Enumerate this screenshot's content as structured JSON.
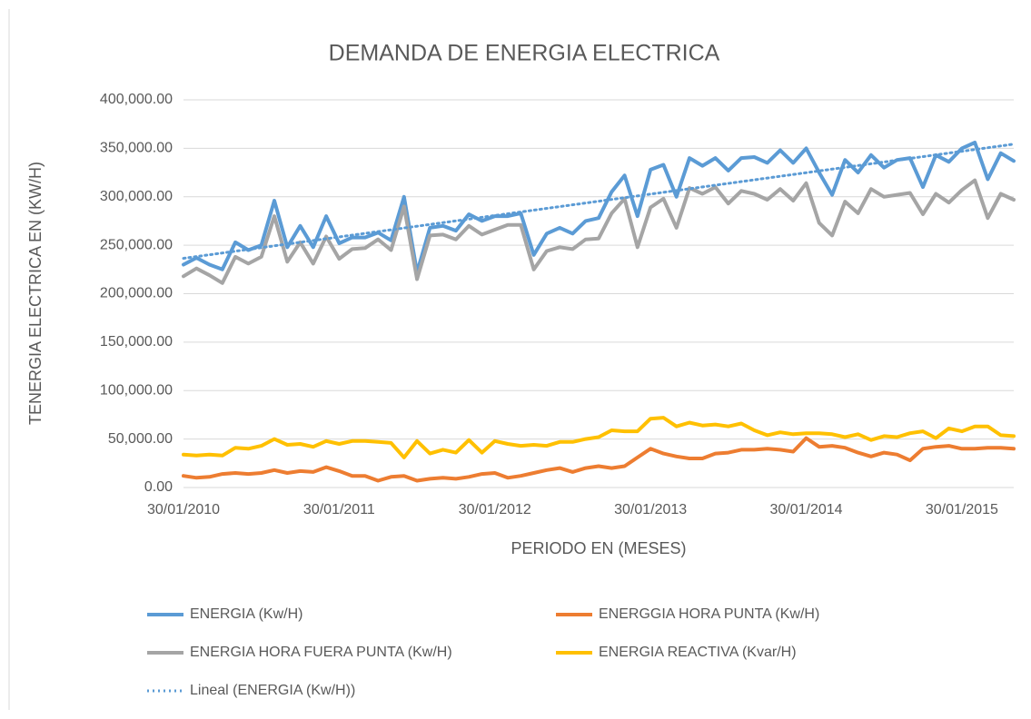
{
  "chart_data": {
    "type": "line",
    "title": "DEMANDA DE ENERGIA ELECTRICA",
    "x_label": "PERIODO EN  (MESES)",
    "y_label": "TENERGIA ELECTRICA EN (KW/H)",
    "categories": [
      "30/01/2010",
      null,
      null,
      null,
      null,
      null,
      null,
      null,
      null,
      null,
      null,
      null,
      "30/01/2011",
      null,
      null,
      null,
      null,
      null,
      null,
      null,
      null,
      null,
      null,
      null,
      "30/01/2012",
      null,
      null,
      null,
      null,
      null,
      null,
      null,
      null,
      null,
      null,
      null,
      "30/01/2013",
      null,
      null,
      null,
      null,
      null,
      null,
      null,
      null,
      null,
      null,
      null,
      "30/01/2014",
      null,
      null,
      null,
      null,
      null,
      null,
      null,
      null,
      null,
      null,
      null,
      "30/01/2015",
      null,
      null,
      null,
      null
    ],
    "ylim": [
      0,
      400000
    ],
    "yticks": [
      {
        "value": 0,
        "label": "0.00"
      },
      {
        "value": 50000,
        "label": "50,000.00"
      },
      {
        "value": 100000,
        "label": "100,000.00"
      },
      {
        "value": 150000,
        "label": "150,000.00"
      },
      {
        "value": 200000,
        "label": "200,000.00"
      },
      {
        "value": 250000,
        "label": "250,000.00"
      },
      {
        "value": 300000,
        "label": "300,000.00"
      },
      {
        "value": 350000,
        "label": "350,000.00"
      },
      {
        "value": 400000,
        "label": "400,000.00"
      }
    ],
    "grid": true,
    "series": [
      {
        "name": "ENERGIA (Kw/H)",
        "color": "#5b9bd5",
        "values": [
          230000,
          237000,
          230000,
          225000,
          253000,
          245000,
          250000,
          296000,
          248000,
          270000,
          248000,
          280000,
          252000,
          258000,
          258000,
          263000,
          255000,
          300000,
          222000,
          268000,
          270000,
          265000,
          282000,
          275000,
          280000,
          280000,
          283000,
          240000,
          262000,
          268000,
          262000,
          275000,
          278000,
          305000,
          322000,
          280000,
          328000,
          333000,
          300000,
          340000,
          332000,
          340000,
          327000,
          340000,
          341000,
          335000,
          348000,
          335000,
          350000,
          325000,
          302000,
          338000,
          325000,
          343000,
          330000,
          338000,
          340000,
          310000,
          343000,
          336000,
          350000,
          356000,
          318000,
          345000,
          337000
        ]
      },
      {
        "name": "ENERGGIA HORA PUNTA (Kw/H)",
        "color": "#ed7d31",
        "values": [
          12000,
          10000,
          11000,
          14000,
          15000,
          14000,
          15000,
          18000,
          15000,
          17000,
          16000,
          21000,
          17000,
          12000,
          12000,
          7000,
          11000,
          12000,
          7000,
          9000,
          10000,
          9000,
          11000,
          14000,
          15000,
          10000,
          12000,
          15000,
          18000,
          20000,
          16000,
          20000,
          22000,
          20000,
          22000,
          31000,
          40000,
          35000,
          32000,
          30000,
          30000,
          35000,
          36000,
          39000,
          39000,
          40000,
          39000,
          37000,
          51000,
          42000,
          43000,
          41000,
          36000,
          32000,
          36000,
          34000,
          28000,
          40000,
          42000,
          43000,
          40000,
          40000,
          41000,
          41000,
          40000
        ]
      },
      {
        "name": "ENERGIA HORA FUERA PUNTA (Kw/H)",
        "color": "#a5a5a5",
        "values": [
          218000,
          226000,
          219000,
          211000,
          238000,
          231000,
          238000,
          280000,
          233000,
          253000,
          231000,
          259000,
          236000,
          246000,
          247000,
          256000,
          245000,
          290000,
          215000,
          260000,
          261000,
          256000,
          270000,
          261000,
          266000,
          271000,
          271000,
          225000,
          244000,
          248000,
          246000,
          256000,
          257000,
          283000,
          298000,
          248000,
          289000,
          298000,
          268000,
          309000,
          303000,
          310000,
          293000,
          306000,
          303000,
          297000,
          308000,
          296000,
          314000,
          273000,
          260000,
          295000,
          283000,
          308000,
          300000,
          302000,
          304000,
          282000,
          303000,
          294000,
          307000,
          317000,
          278000,
          303000,
          297000
        ]
      },
      {
        "name": "ENERGIA REACTIVA (Kvar/H)",
        "color": "#ffc000",
        "values": [
          34000,
          33000,
          34000,
          33000,
          41000,
          40000,
          43000,
          50000,
          44000,
          45000,
          42000,
          48000,
          45000,
          48000,
          48000,
          47000,
          46000,
          31000,
          48000,
          35000,
          39000,
          36000,
          49000,
          36000,
          48000,
          45000,
          43000,
          44000,
          43000,
          47000,
          47000,
          50000,
          52000,
          59000,
          58000,
          58000,
          71000,
          72000,
          63000,
          67000,
          64000,
          65000,
          63000,
          66000,
          59000,
          54000,
          57000,
          55000,
          56000,
          56000,
          55000,
          52000,
          55000,
          49000,
          53000,
          52000,
          56000,
          58000,
          51000,
          61000,
          58000,
          63000,
          63000,
          54000,
          53000
        ]
      }
    ],
    "trendline": {
      "name": "Lineal (ENERGIA (Kw/H))",
      "color": "#5b9bd5",
      "series": 0,
      "kind": "linear"
    }
  }
}
